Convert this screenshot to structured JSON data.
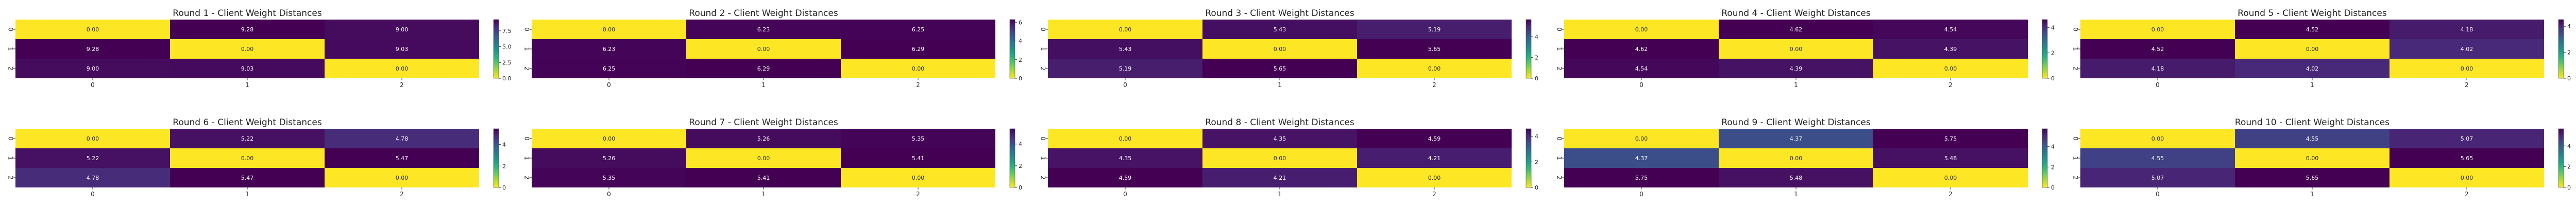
{
  "colormap": {
    "name": "viridis_r",
    "stops": [
      "#fde725",
      "#b5de2b",
      "#6ece58",
      "#35b779",
      "#1f9e89",
      "#26828e",
      "#31688e",
      "#3e4989",
      "#482878",
      "#440154"
    ]
  },
  "chart_data": [
    {
      "type": "heatmap",
      "title": "Round 1 - Client Weight Distances",
      "x_ticks": [
        "0",
        "1",
        "2"
      ],
      "y_ticks": [
        "0",
        "1",
        "2"
      ],
      "values": [
        [
          0.0,
          9.28,
          9.0
        ],
        [
          9.28,
          0.0,
          9.03
        ],
        [
          9.0,
          9.03,
          0.0
        ]
      ],
      "colorbar": {
        "vmin": 0,
        "vmax": 9.28,
        "ticks": [
          0.0,
          2.5,
          5.0,
          7.5
        ],
        "tick_labels": [
          "0.0",
          "2.5",
          "5.0",
          "7.5"
        ]
      }
    },
    {
      "type": "heatmap",
      "title": "Round 2 - Client Weight Distances",
      "x_ticks": [
        "0",
        "1",
        "2"
      ],
      "y_ticks": [
        "0",
        "1",
        "2"
      ],
      "values": [
        [
          0.0,
          6.23,
          6.25
        ],
        [
          6.23,
          0.0,
          6.29
        ],
        [
          6.25,
          6.29,
          0.0
        ]
      ],
      "colorbar": {
        "vmin": 0,
        "vmax": 6.29,
        "ticks": [
          0,
          2,
          4,
          6
        ],
        "tick_labels": [
          "0",
          "2",
          "4",
          "6"
        ]
      }
    },
    {
      "type": "heatmap",
      "title": "Round 3 - Client Weight Distances",
      "x_ticks": [
        "0",
        "1",
        "2"
      ],
      "y_ticks": [
        "0",
        "1",
        "2"
      ],
      "values": [
        [
          0.0,
          5.43,
          5.19
        ],
        [
          5.43,
          0.0,
          5.65
        ],
        [
          5.19,
          5.65,
          0.0
        ]
      ],
      "colorbar": {
        "vmin": 0,
        "vmax": 5.65,
        "ticks": [
          0,
          2,
          4
        ],
        "tick_labels": [
          "0",
          "2",
          "4"
        ]
      }
    },
    {
      "type": "heatmap",
      "title": "Round 4 - Client Weight Distances",
      "x_ticks": [
        "0",
        "1",
        "2"
      ],
      "y_ticks": [
        "0",
        "1",
        "2"
      ],
      "values": [
        [
          0.0,
          4.62,
          4.54
        ],
        [
          4.62,
          0.0,
          4.39
        ],
        [
          4.54,
          4.39,
          0.0
        ]
      ],
      "colorbar": {
        "vmin": 0,
        "vmax": 4.62,
        "ticks": [
          0,
          2,
          4
        ],
        "tick_labels": [
          "0",
          "2",
          "4"
        ]
      }
    },
    {
      "type": "heatmap",
      "title": "Round 5 - Client Weight Distances",
      "x_ticks": [
        "0",
        "1",
        "2"
      ],
      "y_ticks": [
        "0",
        "1",
        "2"
      ],
      "values": [
        [
          0.0,
          4.52,
          4.18
        ],
        [
          4.52,
          0.0,
          4.02
        ],
        [
          4.18,
          4.02,
          0.0
        ]
      ],
      "colorbar": {
        "vmin": 0,
        "vmax": 4.52,
        "ticks": [
          0,
          2,
          4
        ],
        "tick_labels": [
          "0",
          "2",
          "4"
        ]
      }
    },
    {
      "type": "heatmap",
      "title": "Round 6 - Client Weight Distances",
      "x_ticks": [
        "0",
        "1",
        "2"
      ],
      "y_ticks": [
        "0",
        "1",
        "2"
      ],
      "values": [
        [
          0.0,
          5.22,
          4.78
        ],
        [
          5.22,
          0.0,
          5.47
        ],
        [
          4.78,
          5.47,
          0.0
        ]
      ],
      "colorbar": {
        "vmin": 0,
        "vmax": 5.47,
        "ticks": [
          0,
          2,
          4
        ],
        "tick_labels": [
          "0",
          "2",
          "4"
        ]
      }
    },
    {
      "type": "heatmap",
      "title": "Round 7 - Client Weight Distances",
      "x_ticks": [
        "0",
        "1",
        "2"
      ],
      "y_ticks": [
        "0",
        "1",
        "2"
      ],
      "values": [
        [
          0.0,
          5.26,
          5.35
        ],
        [
          5.26,
          0.0,
          5.41
        ],
        [
          5.35,
          5.41,
          0.0
        ]
      ],
      "colorbar": {
        "vmin": 0,
        "vmax": 5.41,
        "ticks": [
          0,
          2,
          4
        ],
        "tick_labels": [
          "0",
          "2",
          "4"
        ]
      }
    },
    {
      "type": "heatmap",
      "title": "Round 8 - Client Weight Distances",
      "x_ticks": [
        "0",
        "1",
        "2"
      ],
      "y_ticks": [
        "0",
        "1",
        "2"
      ],
      "values": [
        [
          0.0,
          4.35,
          4.59
        ],
        [
          4.35,
          0.0,
          4.21
        ],
        [
          4.59,
          4.21,
          0.0
        ]
      ],
      "colorbar": {
        "vmin": 0,
        "vmax": 4.59,
        "ticks": [
          0,
          2,
          4
        ],
        "tick_labels": [
          "0",
          "2",
          "4"
        ]
      }
    },
    {
      "type": "heatmap",
      "title": "Round 9 - Client Weight Distances",
      "x_ticks": [
        "0",
        "1",
        "2"
      ],
      "y_ticks": [
        "0",
        "1",
        "2"
      ],
      "values": [
        [
          0.0,
          4.37,
          5.75
        ],
        [
          4.37,
          0.0,
          5.48
        ],
        [
          5.75,
          5.48,
          0.0
        ]
      ],
      "colorbar": {
        "vmin": 0,
        "vmax": 5.75,
        "ticks": [
          0,
          2,
          4
        ],
        "tick_labels": [
          "0",
          "2",
          "4"
        ]
      }
    },
    {
      "type": "heatmap",
      "title": "Round 10 - Client Weight Distances",
      "x_ticks": [
        "0",
        "1",
        "2"
      ],
      "y_ticks": [
        "0",
        "1",
        "2"
      ],
      "values": [
        [
          0.0,
          4.55,
          5.07
        ],
        [
          4.55,
          0.0,
          5.65
        ],
        [
          5.07,
          5.65,
          0.0
        ]
      ],
      "colorbar": {
        "vmin": 0,
        "vmax": 5.65,
        "ticks": [
          0,
          2,
          4
        ],
        "tick_labels": [
          "0",
          "2",
          "4"
        ]
      }
    }
  ]
}
